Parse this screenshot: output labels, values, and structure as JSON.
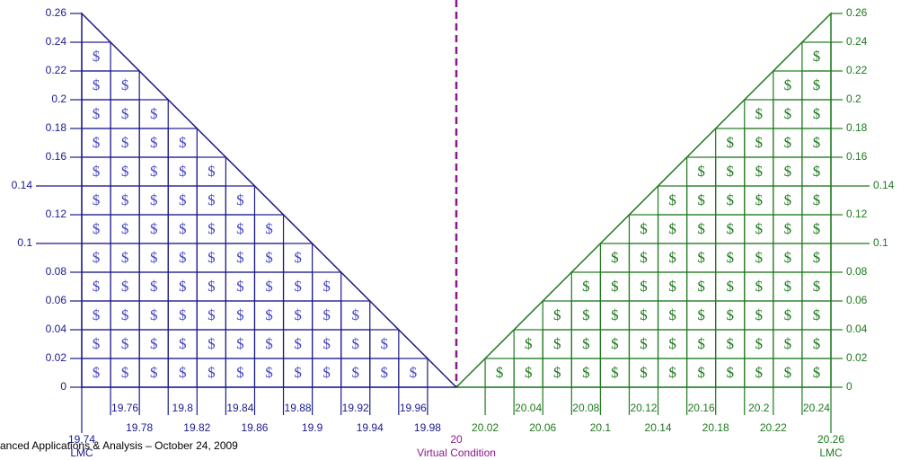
{
  "xlim": [
    19.74,
    20.26
  ],
  "ylim": [
    0,
    0.26
  ],
  "yticks": [
    0,
    0.02,
    0.04,
    0.06,
    0.08,
    0.1,
    0.12,
    0.14,
    0.16,
    0.18,
    0.2,
    0.22,
    0.24,
    0.26
  ],
  "long_yticks": [
    0.1,
    0.14
  ],
  "left_xticks": [
    19.76,
    19.78,
    19.8,
    19.82,
    19.84,
    19.86,
    19.88,
    19.9,
    19.92,
    19.94,
    19.96,
    19.98
  ],
  "right_xticks": [
    20.02,
    20.04,
    20.06,
    20.08,
    20.1,
    20.12,
    20.14,
    20.16,
    20.18,
    20.2,
    20.22,
    20.24
  ],
  "left_end": {
    "value": 19.74,
    "label": "LMC"
  },
  "center": {
    "value": 20,
    "label": "Virtual Condition"
  },
  "right_end": {
    "value": 20.26,
    "label": "LMC"
  },
  "symbol": "$",
  "footer": "anced Applications & Analysis – October 24, 2009"
}
